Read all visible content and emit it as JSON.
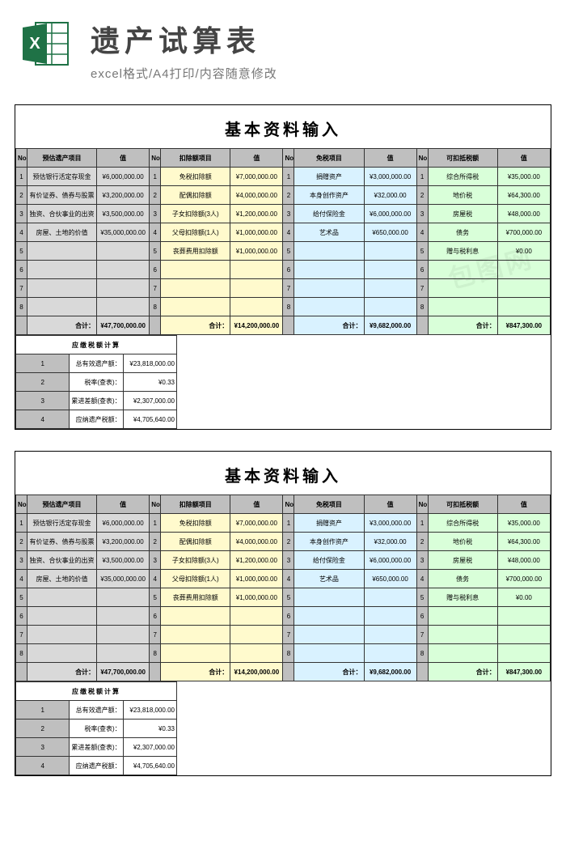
{
  "header": {
    "title": "遗产试算表",
    "subtitle": "excel格式/A4打印/内容随意修改"
  },
  "sheet_title": "基本资料输入",
  "columns": {
    "no": "No",
    "sec1": {
      "label_h": "预估遗产项目",
      "val_h": "值",
      "color": "#d9d9d9"
    },
    "sec2": {
      "label_h": "扣除额项目",
      "val_h": "值",
      "color": "#fffacd"
    },
    "sec3": {
      "label_h": "免税项目",
      "val_h": "值",
      "color": "#d9f2ff"
    },
    "sec4": {
      "label_h": "可扣抵税额",
      "val_h": "值",
      "color": "#d9ffd9"
    }
  },
  "rows": [
    {
      "n": "1",
      "s1l": "预估银行活定存现金",
      "s1v": "¥6,000,000.00",
      "s2l": "免税扣除额",
      "s2v": "¥7,000,000.00",
      "s3l": "捐赠资产",
      "s3v": "¥3,000,000.00",
      "s4l": "综合所得税",
      "s4v": "¥35,000.00"
    },
    {
      "n": "2",
      "s1l": "有价证券、债券与股票",
      "s1v": "¥3,200,000.00",
      "s2l": "配偶扣除额",
      "s2v": "¥4,000,000.00",
      "s3l": "本身创作资产",
      "s3v": "¥32,000.00",
      "s4l": "地价税",
      "s4v": "¥64,300.00"
    },
    {
      "n": "3",
      "s1l": "独资、合伙事业的出资",
      "s1v": "¥3,500,000.00",
      "s2l": "子女扣除额(3人)",
      "s2v": "¥1,200,000.00",
      "s3l": "给付保险金",
      "s3v": "¥6,000,000.00",
      "s4l": "房屋税",
      "s4v": "¥48,000.00"
    },
    {
      "n": "4",
      "s1l": "房屋、土地的价值",
      "s1v": "¥35,000,000.00",
      "s2l": "父母扣除额(1人)",
      "s2v": "¥1,000,000.00",
      "s3l": "艺术品",
      "s3v": "¥650,000.00",
      "s4l": "债务",
      "s4v": "¥700,000.00"
    },
    {
      "n": "5",
      "s1l": "",
      "s1v": "",
      "s2l": "丧葬费用扣除额",
      "s2v": "¥1,000,000.00",
      "s3l": "",
      "s3v": "",
      "s4l": "赠与税利息",
      "s4v": "¥0.00"
    },
    {
      "n": "6",
      "s1l": "",
      "s1v": "",
      "s2l": "",
      "s2v": "",
      "s3l": "",
      "s3v": "",
      "s4l": "",
      "s4v": ""
    },
    {
      "n": "7",
      "s1l": "",
      "s1v": "",
      "s2l": "",
      "s2v": "",
      "s3l": "",
      "s3v": "",
      "s4l": "",
      "s4v": ""
    },
    {
      "n": "8",
      "s1l": "",
      "s1v": "",
      "s2l": "",
      "s2v": "",
      "s3l": "",
      "s3v": "",
      "s4l": "",
      "s4v": ""
    }
  ],
  "totals": {
    "label": "合计：",
    "s1": "¥47,700,000.00",
    "s2": "¥14,200,000.00",
    "s3": "¥9,682,000.00",
    "s4": "¥847,300.00"
  },
  "tax": {
    "title": "应缴税额计算",
    "rows": [
      {
        "n": "1",
        "l": "总有效遗产额：",
        "v": "¥23,818,000.00"
      },
      {
        "n": "2",
        "l": "税率(查表)：",
        "v": "¥0.33"
      },
      {
        "n": "3",
        "l": "累进差额(查表)：",
        "v": "¥2,307,000.00"
      },
      {
        "n": "4",
        "l": "应纳遗产税额：",
        "v": "¥4,705,640.00"
      }
    ]
  },
  "watermark": "包图网"
}
